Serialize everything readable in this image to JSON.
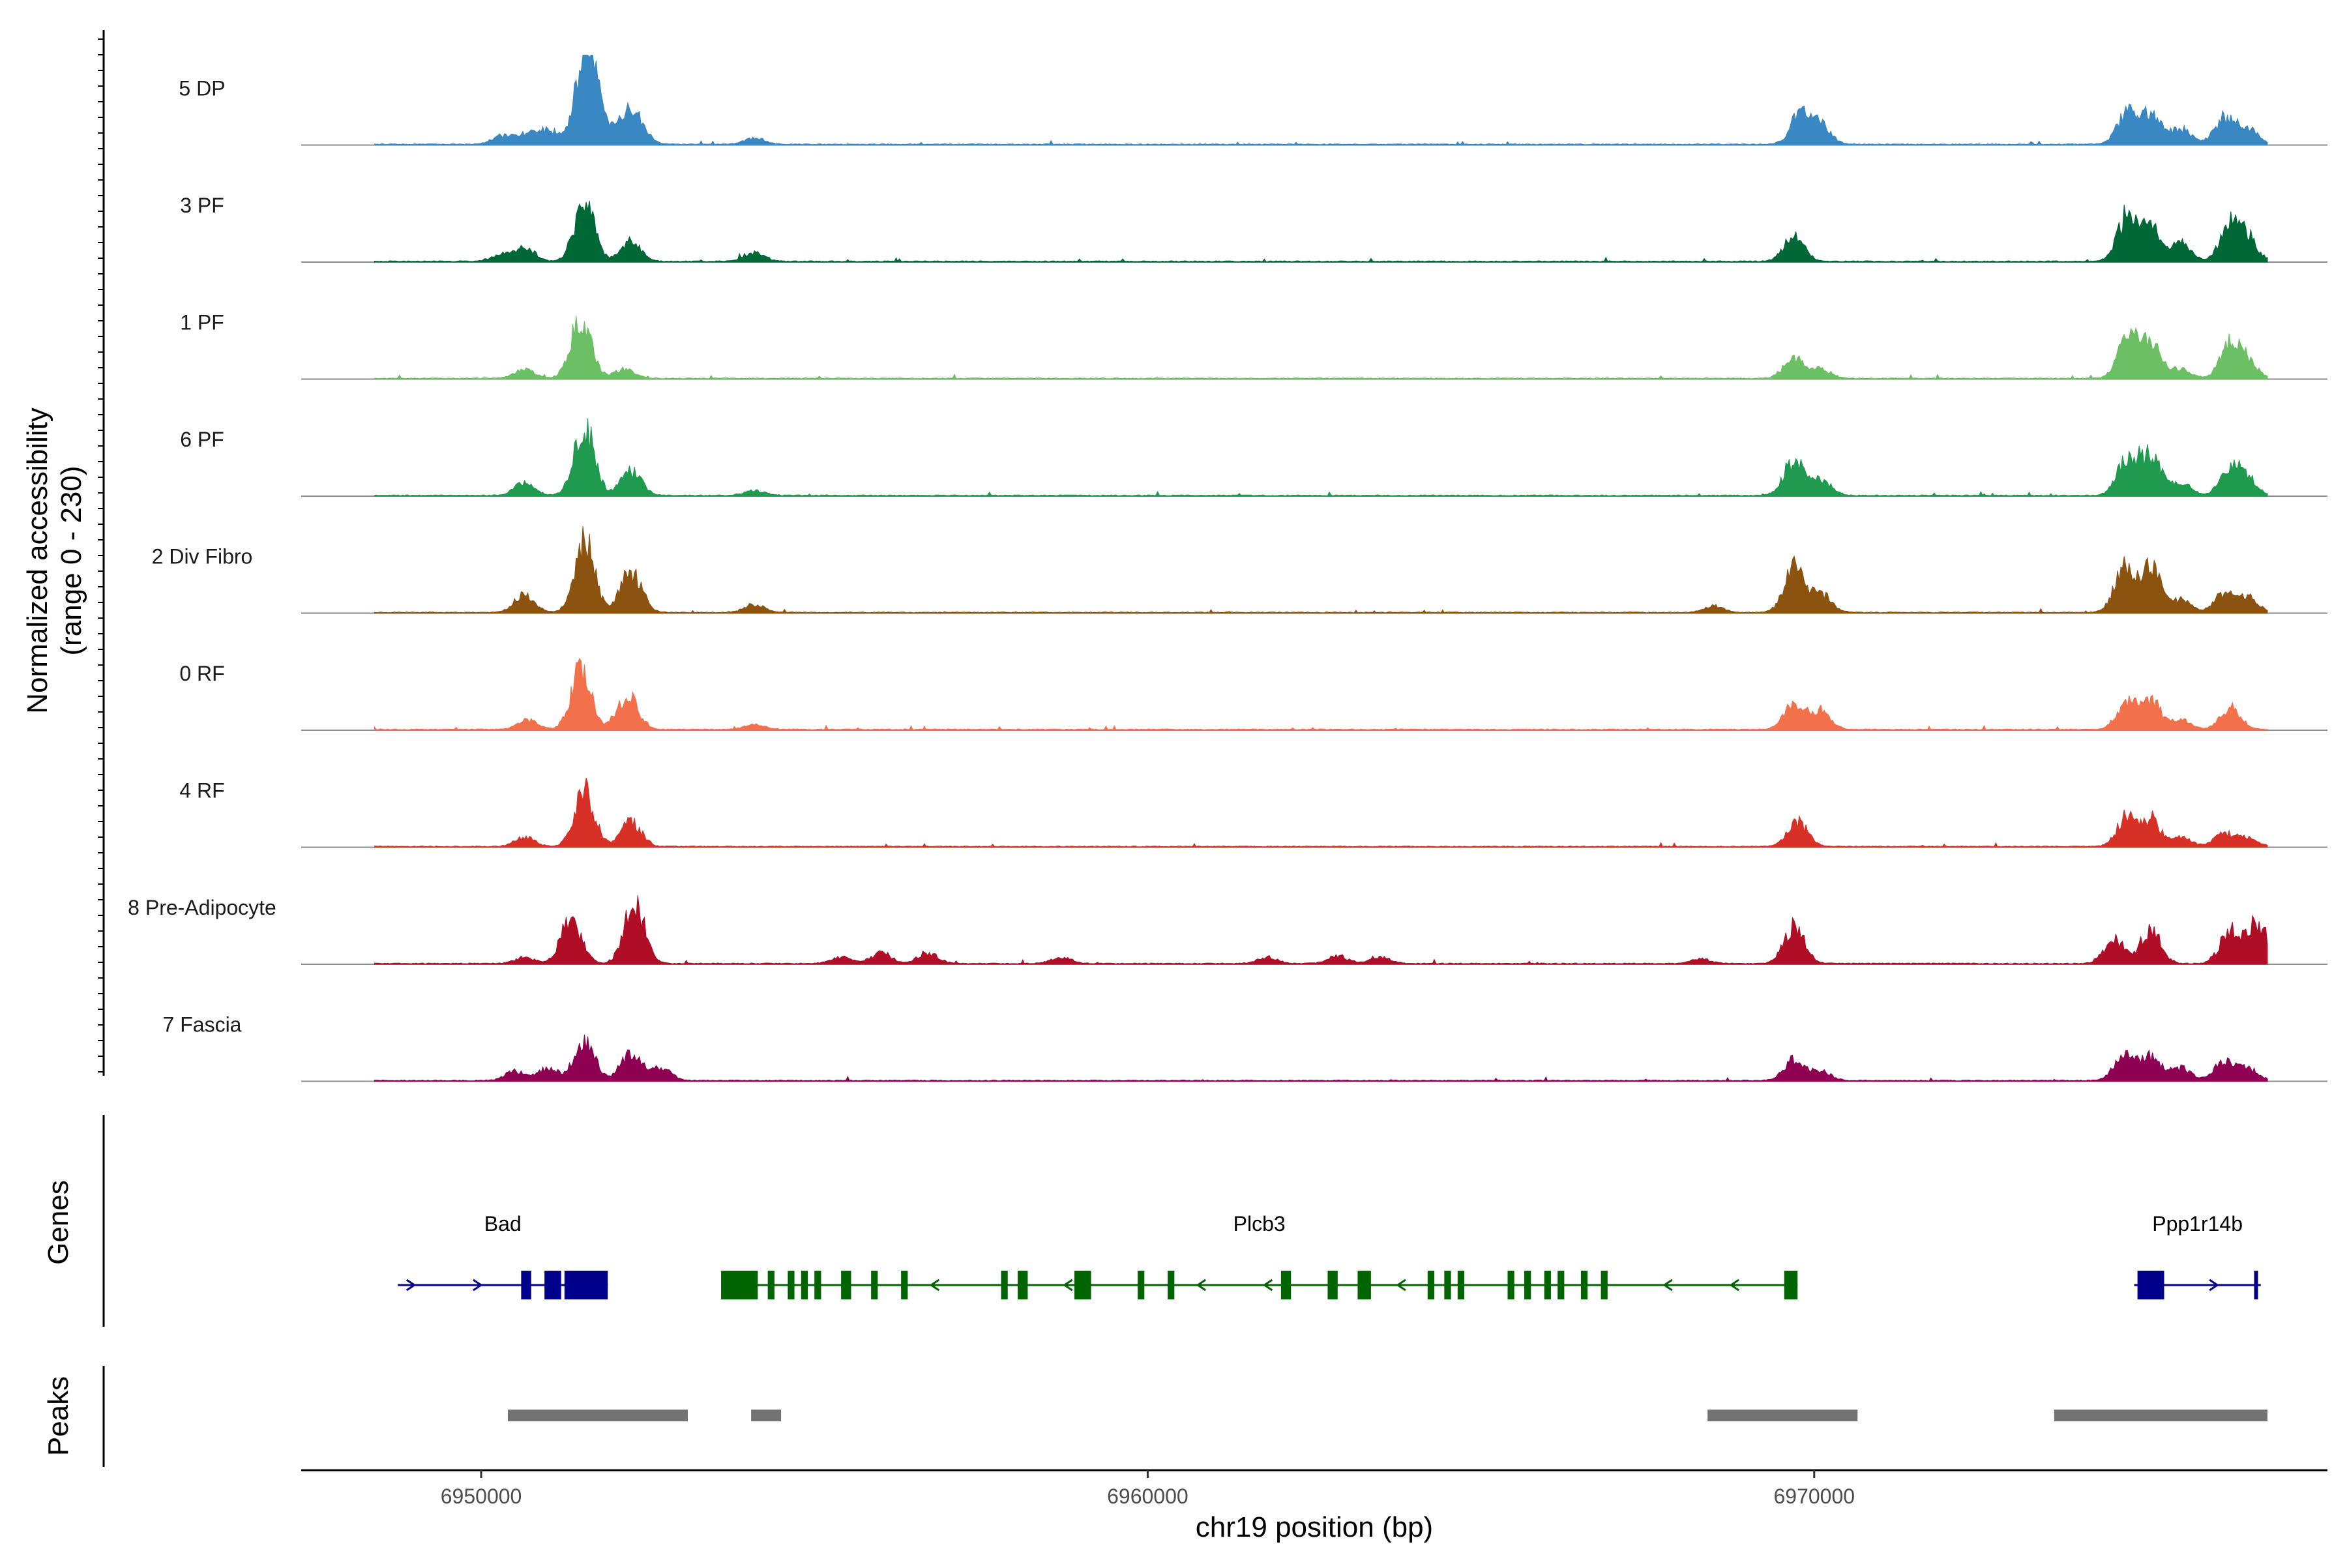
{
  "chart_data": {
    "type": "area",
    "title": "",
    "ylabel": "Normalized accessibility",
    "ylabel_range": "(range 0 - 230)",
    "y_range": [
      0,
      230
    ],
    "xlabel": "chr19 position (bp)",
    "xlim": [
      6947300,
      6977700
    ],
    "x_ticks": [
      6950000,
      6960000,
      6970000
    ],
    "x_tick_labels": [
      "6950000",
      "6960000",
      "6970000"
    ],
    "series": [
      {
        "name": "5 DP",
        "color": "#3a88c3",
        "peaks": [
          [
            6950300,
            25
          ],
          [
            6950650,
            30
          ],
          [
            6951000,
            50
          ],
          [
            6951550,
            200
          ],
          [
            6951650,
            170
          ],
          [
            6952150,
            80
          ],
          [
            6952350,
            60
          ],
          [
            6954100,
            20
          ],
          [
            6969800,
            100
          ],
          [
            6970100,
            60
          ],
          [
            6974700,
            100
          ],
          [
            6975050,
            95
          ],
          [
            6975500,
            50
          ],
          [
            6976150,
            85
          ],
          [
            6976500,
            50
          ]
        ]
      },
      {
        "name": "3 PF",
        "color": "#006837",
        "peaks": [
          [
            6950300,
            20
          ],
          [
            6950650,
            45
          ],
          [
            6951550,
            190
          ],
          [
            6952250,
            65
          ],
          [
            6954100,
            30
          ],
          [
            6969700,
            80
          ],
          [
            6974700,
            150
          ],
          [
            6975050,
            110
          ],
          [
            6975500,
            60
          ],
          [
            6976250,
            120
          ],
          [
            6976500,
            70
          ]
        ]
      },
      {
        "name": "1 PF",
        "color": "#6cbf62",
        "peaks": [
          [
            6950650,
            30
          ],
          [
            6951500,
            200
          ],
          [
            6952150,
            30
          ],
          [
            6969700,
            70
          ],
          [
            6970100,
            30
          ],
          [
            6974700,
            130
          ],
          [
            6975050,
            120
          ],
          [
            6975500,
            30
          ],
          [
            6976250,
            110
          ],
          [
            6976500,
            50
          ]
        ]
      },
      {
        "name": "6 PF",
        "color": "#1f9a4e",
        "peaks": [
          [
            6950650,
            40
          ],
          [
            6951550,
            230
          ],
          [
            6952250,
            80
          ],
          [
            6954100,
            15
          ],
          [
            6969700,
            120
          ],
          [
            6970100,
            50
          ],
          [
            6974700,
            120
          ],
          [
            6975050,
            130
          ],
          [
            6975500,
            40
          ],
          [
            6976250,
            90
          ],
          [
            6976500,
            50
          ]
        ]
      },
      {
        "name": "2 Div Fibro",
        "color": "#8b5210",
        "peaks": [
          [
            6950650,
            60
          ],
          [
            6951550,
            230
          ],
          [
            6952250,
            140
          ],
          [
            6954100,
            25
          ],
          [
            6968500,
            20
          ],
          [
            6969700,
            150
          ],
          [
            6970100,
            60
          ],
          [
            6974650,
            140
          ],
          [
            6975050,
            140
          ],
          [
            6975500,
            40
          ],
          [
            6976150,
            60
          ],
          [
            6976500,
            50
          ]
        ]
      },
      {
        "name": "0 RF",
        "color": "#f2714b",
        "peaks": [
          [
            6950700,
            30
          ],
          [
            6951500,
            200
          ],
          [
            6952200,
            110
          ],
          [
            6954100,
            15
          ],
          [
            6969700,
            90
          ],
          [
            6970100,
            55
          ],
          [
            6974700,
            90
          ],
          [
            6975050,
            90
          ],
          [
            6975500,
            30
          ],
          [
            6976250,
            70
          ]
        ]
      },
      {
        "name": "4 RF",
        "color": "#d73027",
        "peaks": [
          [
            6950650,
            30
          ],
          [
            6951550,
            180
          ],
          [
            6952250,
            80
          ],
          [
            6969750,
            80
          ],
          [
            6974700,
            100
          ],
          [
            6975050,
            80
          ],
          [
            6975500,
            30
          ],
          [
            6976150,
            40
          ],
          [
            6976500,
            30
          ]
        ]
      },
      {
        "name": "8 Pre-Adipocyte",
        "color": "#b00d26",
        "peaks": [
          [
            6950650,
            20
          ],
          [
            6951350,
            150
          ],
          [
            6952300,
            200
          ],
          [
            6955400,
            20
          ],
          [
            6956000,
            35
          ],
          [
            6956700,
            35
          ],
          [
            6958700,
            20
          ],
          [
            6961800,
            20
          ],
          [
            6962850,
            25
          ],
          [
            6963500,
            20
          ],
          [
            6968300,
            15
          ],
          [
            6969700,
            120
          ],
          [
            6974500,
            80
          ],
          [
            6975050,
            110
          ],
          [
            6976250,
            110
          ],
          [
            6976650,
            130
          ]
        ]
      },
      {
        "name": "7 Fascia",
        "color": "#8e0152",
        "peaks": [
          [
            6950500,
            30
          ],
          [
            6951000,
            40
          ],
          [
            6951550,
            140
          ],
          [
            6952250,
            95
          ],
          [
            6952700,
            40
          ],
          [
            6969700,
            70
          ],
          [
            6970100,
            30
          ],
          [
            6974650,
            80
          ],
          [
            6975050,
            80
          ],
          [
            6975500,
            40
          ],
          [
            6976150,
            60
          ],
          [
            6976500,
            40
          ]
        ]
      }
    ],
    "genes_track_label": "Genes",
    "peaks_track_label": "Peaks",
    "genes": [
      {
        "name": "Bad",
        "strand": "+",
        "color": "#00008b",
        "start": 6948750,
        "end": 6951900,
        "exons": [
          [
            6950600,
            6950750
          ],
          [
            6950950,
            6951200
          ],
          [
            6951250,
            6951900
          ]
        ]
      },
      {
        "name": "Plcb3",
        "strand": "-",
        "color": "#006400",
        "start": 6953600,
        "end": 6969750,
        "exons": [
          [
            6953600,
            6954150
          ],
          [
            6954300,
            6954400
          ],
          [
            6954600,
            6954700
          ],
          [
            6954800,
            6954900
          ],
          [
            6955000,
            6955100
          ],
          [
            6955400,
            6955550
          ],
          [
            6955850,
            6955950
          ],
          [
            6956300,
            6956400
          ],
          [
            6957800,
            6957900
          ],
          [
            6958050,
            6958200
          ],
          [
            6958900,
            6959150
          ],
          [
            6959850,
            6959950
          ],
          [
            6960300,
            6960400
          ],
          [
            6962000,
            6962150
          ],
          [
            6962700,
            6962850
          ],
          [
            6963150,
            6963350
          ],
          [
            6964200,
            6964300
          ],
          [
            6964450,
            6964550
          ],
          [
            6964650,
            6964750
          ],
          [
            6965400,
            6965500
          ],
          [
            6965650,
            6965750
          ],
          [
            6965950,
            6966050
          ],
          [
            6966150,
            6966250
          ],
          [
            6966500,
            6966600
          ],
          [
            6966800,
            6966900
          ],
          [
            6969550,
            6969750
          ]
        ]
      },
      {
        "name": "Ppp1r14b",
        "strand": "+",
        "color": "#00008b",
        "start": 6974800,
        "end": 6976700,
        "exons": [
          [
            6974850,
            6975250
          ],
          [
            6976600,
            6976650
          ]
        ]
      }
    ],
    "peak_regions": [
      [
        6950400,
        6953100
      ],
      [
        6954050,
        6954500
      ],
      [
        6968400,
        6970650
      ],
      [
        6973600,
        6976800
      ]
    ]
  }
}
